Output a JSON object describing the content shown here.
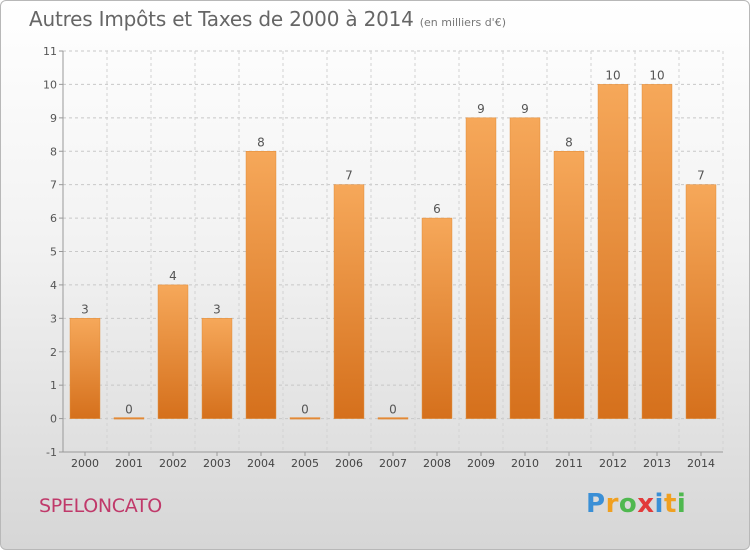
{
  "header": {
    "title": "Autres Impôts et Taxes de 2000 à 2014",
    "subtitle": "(en milliers d'€)"
  },
  "footer": {
    "commune": "SPELONCATO",
    "logo": {
      "letters": [
        "P",
        "r",
        "o",
        "x",
        "i",
        "t",
        "i"
      ],
      "colors": [
        "#3a8fd6",
        "#f0a020",
        "#4fb84f",
        "#e23a3a",
        "#3a8fd6",
        "#f0a020",
        "#4fb84f"
      ]
    }
  },
  "chart_data": {
    "type": "bar",
    "title": "Autres Impôts et Taxes de 2000 à 2014",
    "categories": [
      "2000",
      "2001",
      "2002",
      "2003",
      "2004",
      "2005",
      "2006",
      "2007",
      "2008",
      "2009",
      "2010",
      "2011",
      "2012",
      "2013",
      "2014"
    ],
    "values": [
      3,
      0,
      4,
      3,
      8,
      0,
      7,
      0,
      6,
      9,
      9,
      8,
      10,
      10,
      7
    ],
    "value_labels": [
      "3",
      "0",
      "4",
      "3",
      "8",
      "0",
      "7",
      "0",
      "6",
      "9",
      "9",
      "8",
      "10",
      "10",
      "7"
    ],
    "ylim": [
      -1,
      11
    ],
    "y_ticks": [
      "-1",
      "0",
      "1",
      "2",
      "3",
      "4",
      "5",
      "6",
      "7",
      "8",
      "9",
      "10",
      "11"
    ],
    "grid": true,
    "bar_color": "#f4a24a",
    "bar_color_dark": "#d9731c"
  }
}
